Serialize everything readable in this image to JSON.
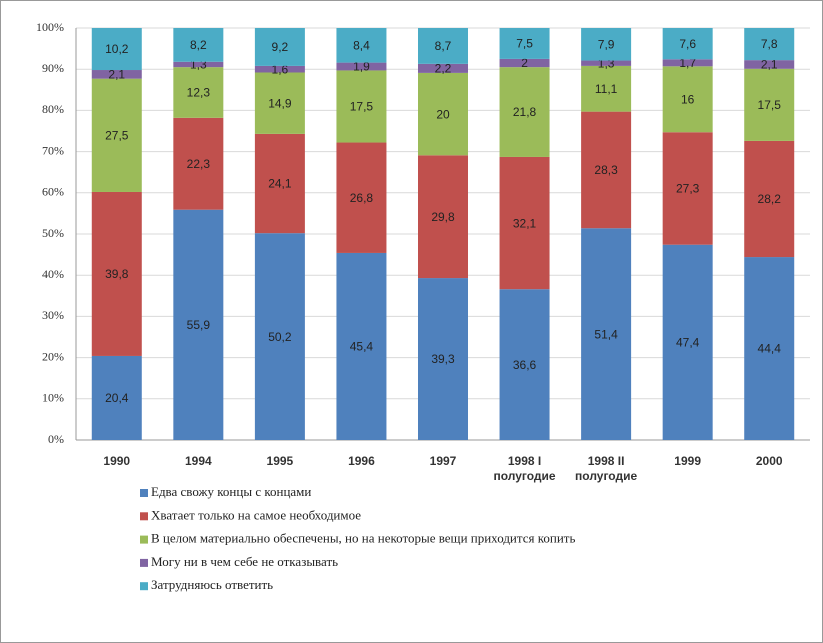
{
  "chart_data": {
    "type": "bar",
    "stacked": true,
    "categories": [
      "1990",
      "1994",
      "1995",
      "1996",
      "1997",
      "1998 I полугодие",
      "1998 II полугодие",
      "1999",
      "2000"
    ],
    "series": [
      {
        "name": "Едва свожу концы с концами",
        "color": "#4f81bd",
        "values": [
          20.4,
          55.9,
          50.2,
          45.4,
          39.3,
          36.6,
          51.4,
          47.4,
          44.4
        ],
        "value_labels": [
          "20,4",
          "55,9",
          "50,2",
          "45,4",
          "39,3",
          "36,6",
          "51,4",
          "47,4",
          "44,4"
        ]
      },
      {
        "name": "Хватает только на самое необходимое",
        "color": "#c0504d",
        "values": [
          39.8,
          22.3,
          24.1,
          26.8,
          29.8,
          32.1,
          28.3,
          27.3,
          28.2
        ],
        "value_labels": [
          "39,8",
          "22,3",
          "24,1",
          "26,8",
          "29,8",
          "32,1",
          "28,3",
          "27,3",
          "28,2"
        ]
      },
      {
        "name": "В целом материально обеспечены, но на некоторые вещи приходится копить",
        "color": "#9bbb59",
        "values": [
          27.5,
          12.3,
          14.9,
          17.5,
          20,
          21.8,
          11.1,
          16,
          17.5
        ],
        "value_labels": [
          "27,5",
          "12,3",
          "14,9",
          "17,5",
          "20",
          "21,8",
          "11,1",
          "16",
          "17,5"
        ]
      },
      {
        "name": "Могу ни в чем себе не отказывать",
        "color": "#8064a2",
        "values": [
          2.1,
          1.3,
          1.6,
          1.9,
          2.2,
          2,
          1.3,
          1.7,
          2.1
        ],
        "value_labels": [
          "2,1",
          "1,3",
          "1,6",
          "1,9",
          "2,2",
          "2",
          "1,3",
          "1,7",
          "2,1"
        ]
      },
      {
        "name": "Затрудняюсь ответить",
        "color": "#4bacc6",
        "values": [
          10.2,
          8.2,
          9.2,
          8.4,
          8.7,
          7.5,
          7.9,
          7.6,
          7.8
        ],
        "value_labels": [
          "10,2",
          "8,2",
          "9,2",
          "8,4",
          "8,7",
          "7,5",
          "7,9",
          "7,6",
          "7,8"
        ]
      }
    ],
    "ylim": [
      0,
      100
    ],
    "yticks": [
      {
        "value": 0,
        "label": "0%"
      },
      {
        "value": 10,
        "label": "10%"
      },
      {
        "value": 20,
        "label": "20%"
      },
      {
        "value": 30,
        "label": "30%"
      },
      {
        "value": 40,
        "label": "40%"
      },
      {
        "value": 50,
        "label": "50%"
      },
      {
        "value": 60,
        "label": "60%"
      },
      {
        "value": 70,
        "label": "70%"
      },
      {
        "value": 80,
        "label": "80%"
      },
      {
        "value": 90,
        "label": "90%"
      },
      {
        "value": 100,
        "label": "100%"
      }
    ],
    "grid": true,
    "legend": "bottom-left"
  }
}
